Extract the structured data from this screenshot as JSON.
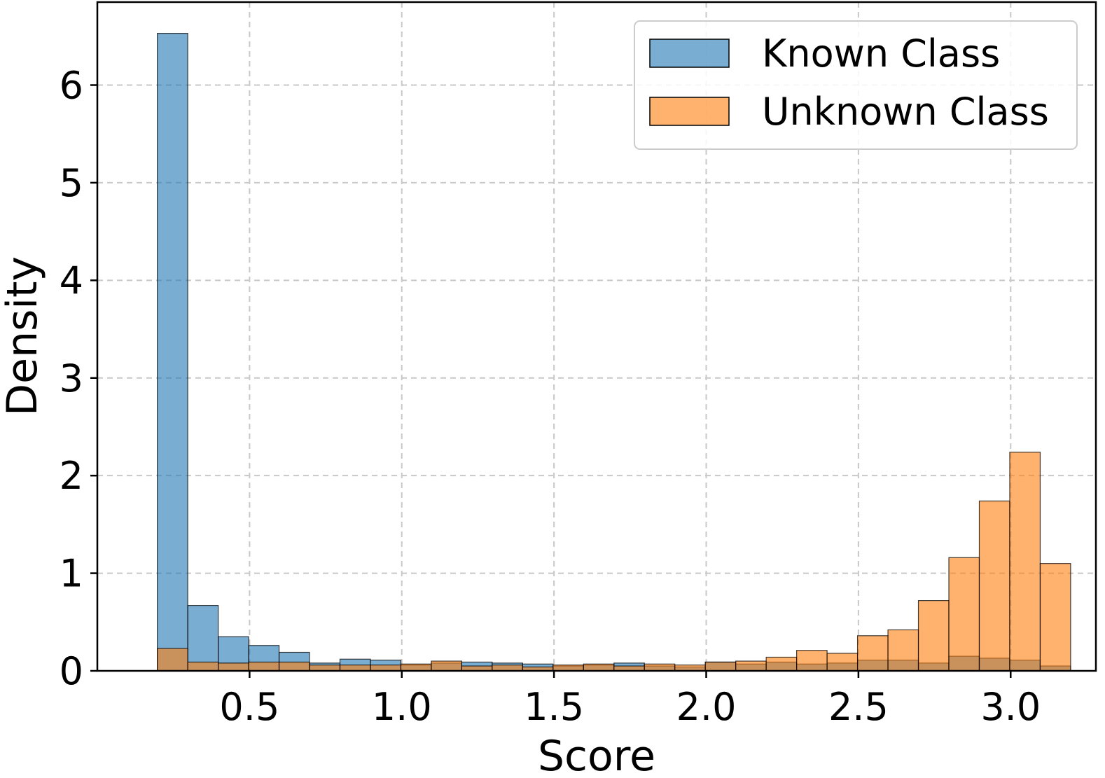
{
  "chart_data": {
    "type": "histogram",
    "xlabel": "Score",
    "ylabel": "Density",
    "xlim": [
      0.0,
      3.28
    ],
    "ylim": [
      0,
      6.85
    ],
    "xticks": [
      0.5,
      1.0,
      1.5,
      2.0,
      2.5,
      3.0
    ],
    "xtick_labels": [
      "0.5",
      "1.0",
      "1.5",
      "2.0",
      "2.5",
      "3.0"
    ],
    "yticks": [
      0,
      1,
      2,
      3,
      4,
      5,
      6
    ],
    "ytick_labels": [
      "0",
      "1",
      "2",
      "3",
      "4",
      "5",
      "6"
    ],
    "grid": true,
    "legend_position": "top-right",
    "series": [
      {
        "name": "Known Class",
        "color": "#1f77b4",
        "alpha": 0.6,
        "bins": [
          [
            0.197,
            0.297,
            6.53
          ],
          [
            0.297,
            0.397,
            0.67
          ],
          [
            0.397,
            0.497,
            0.35
          ],
          [
            0.497,
            0.597,
            0.26
          ],
          [
            0.597,
            0.697,
            0.19
          ],
          [
            0.697,
            0.797,
            0.08
          ],
          [
            0.797,
            0.897,
            0.12
          ],
          [
            0.897,
            0.997,
            0.11
          ],
          [
            0.997,
            1.097,
            0.06
          ],
          [
            1.097,
            1.197,
            0.08
          ],
          [
            1.197,
            1.297,
            0.09
          ],
          [
            1.297,
            1.397,
            0.08
          ],
          [
            1.397,
            1.497,
            0.07
          ],
          [
            1.497,
            1.597,
            0.05
          ],
          [
            1.597,
            1.697,
            0.06
          ],
          [
            1.697,
            1.797,
            0.08
          ],
          [
            1.797,
            1.897,
            0.05
          ],
          [
            1.897,
            1.997,
            0.04
          ],
          [
            1.997,
            2.097,
            0.09
          ],
          [
            2.097,
            2.197,
            0.07
          ],
          [
            2.197,
            2.297,
            0.09
          ],
          [
            2.297,
            2.397,
            0.07
          ],
          [
            2.397,
            2.497,
            0.08
          ],
          [
            2.497,
            2.597,
            0.11
          ],
          [
            2.597,
            2.697,
            0.11
          ],
          [
            2.697,
            2.797,
            0.08
          ],
          [
            2.797,
            2.897,
            0.15
          ],
          [
            2.897,
            2.997,
            0.13
          ],
          [
            2.997,
            3.097,
            0.11
          ],
          [
            3.097,
            3.197,
            0.05
          ]
        ]
      },
      {
        "name": "Unknown Class",
        "color": "#ff7f0e",
        "alpha": 0.6,
        "bins": [
          [
            0.197,
            0.297,
            0.23
          ],
          [
            0.297,
            0.397,
            0.09
          ],
          [
            0.397,
            0.497,
            0.08
          ],
          [
            0.497,
            0.597,
            0.09
          ],
          [
            0.597,
            0.697,
            0.09
          ],
          [
            0.697,
            0.797,
            0.06
          ],
          [
            0.797,
            0.897,
            0.06
          ],
          [
            0.897,
            0.997,
            0.06
          ],
          [
            0.997,
            1.097,
            0.07
          ],
          [
            1.097,
            1.197,
            0.1
          ],
          [
            1.197,
            1.297,
            0.05
          ],
          [
            1.297,
            1.397,
            0.06
          ],
          [
            1.397,
            1.497,
            0.04
          ],
          [
            1.497,
            1.597,
            0.06
          ],
          [
            1.597,
            1.697,
            0.07
          ],
          [
            1.697,
            1.797,
            0.05
          ],
          [
            1.797,
            1.897,
            0.07
          ],
          [
            1.897,
            1.997,
            0.06
          ],
          [
            1.997,
            2.097,
            0.09
          ],
          [
            2.097,
            2.197,
            0.1
          ],
          [
            2.197,
            2.297,
            0.14
          ],
          [
            2.297,
            2.397,
            0.21
          ],
          [
            2.397,
            2.497,
            0.18
          ],
          [
            2.497,
            2.597,
            0.36
          ],
          [
            2.597,
            2.697,
            0.42
          ],
          [
            2.697,
            2.797,
            0.72
          ],
          [
            2.797,
            2.897,
            1.16
          ],
          [
            2.897,
            2.997,
            1.74
          ],
          [
            2.997,
            3.097,
            2.24
          ],
          [
            3.097,
            3.197,
            1.1
          ]
        ]
      }
    ]
  }
}
